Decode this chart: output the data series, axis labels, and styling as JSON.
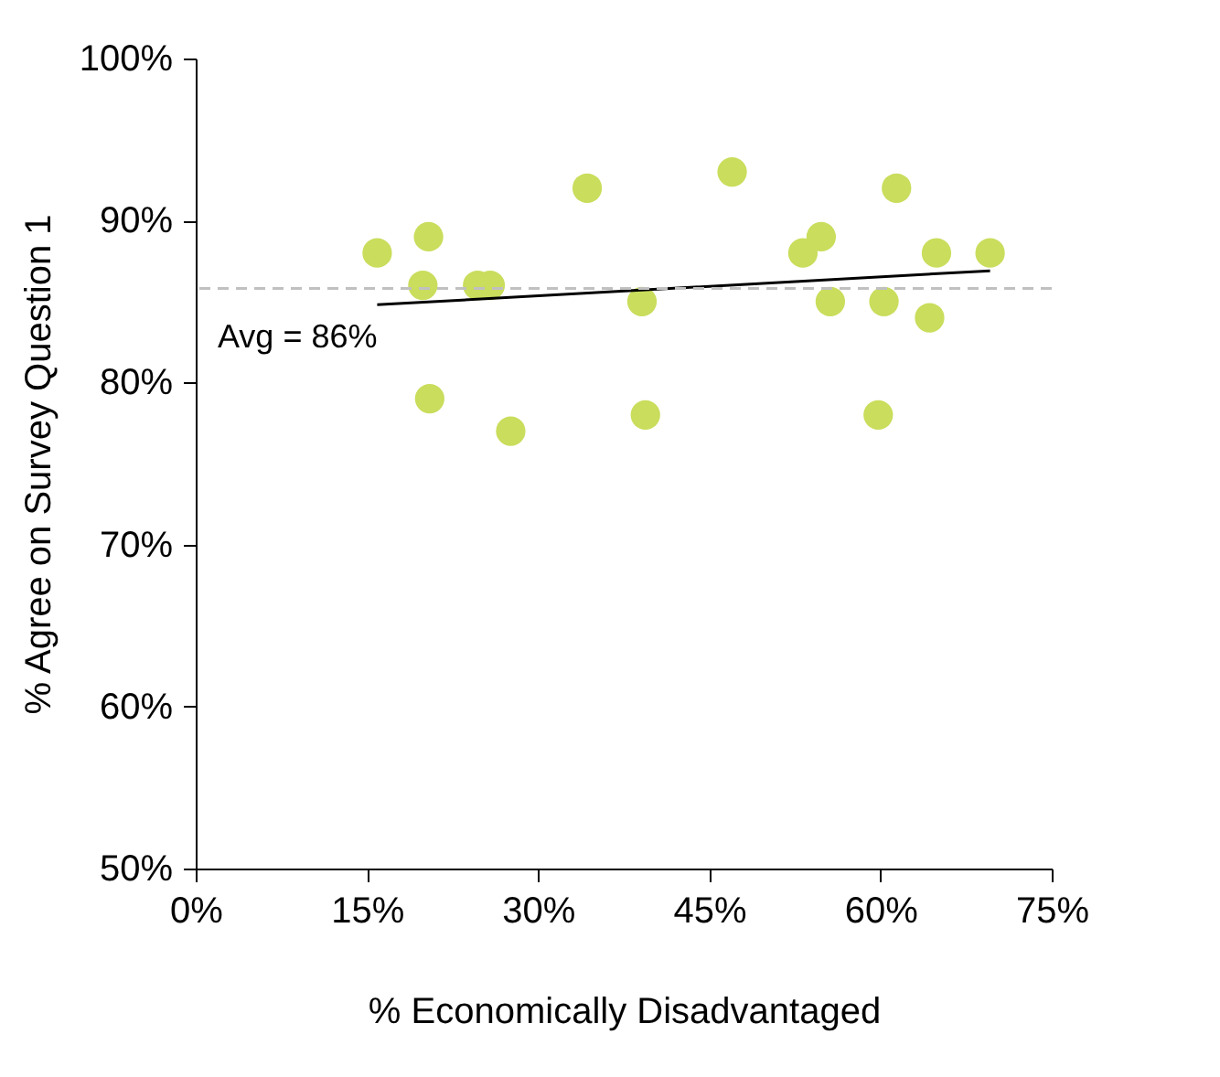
{
  "chart_data": {
    "type": "scatter",
    "xlabel": "% Economically Disadvantaged",
    "ylabel": "% Agree on Survey Question 1",
    "grid": false,
    "xlim": [
      0,
      75
    ],
    "xticks": [
      {
        "value": 0,
        "label": "0%"
      },
      {
        "value": 15,
        "label": "15%"
      },
      {
        "value": 30,
        "label": "30%"
      },
      {
        "value": 45,
        "label": "45%"
      },
      {
        "value": 60,
        "label": "60%"
      },
      {
        "value": 75,
        "label": "75%"
      }
    ],
    "ylim": [
      50,
      100
    ],
    "yticks": [
      {
        "value": 50,
        "label": "50%"
      },
      {
        "value": 60,
        "label": "60%"
      },
      {
        "value": 70,
        "label": "70%"
      },
      {
        "value": 80,
        "label": "80%"
      },
      {
        "value": 90,
        "label": "90%"
      },
      {
        "value": 100,
        "label": "100%"
      }
    ],
    "series": [
      {
        "marker": "circle",
        "color": "#cadd5c",
        "x": [
          15.9,
          20.4,
          19.9,
          20.5,
          24.7,
          25.8,
          27.6,
          34.3,
          39.1,
          39.4,
          47.0,
          53.2,
          54.8,
          55.6,
          59.8,
          60.3,
          61.4,
          64.3,
          64.9,
          69.6
        ],
        "values": [
          88,
          89,
          86,
          79,
          86,
          86,
          77,
          92,
          85,
          78,
          93,
          88,
          89,
          85,
          78,
          85,
          92,
          84,
          88,
          88
        ]
      },
      {
        "type": "line",
        "color": "#000000",
        "x": [
          15.9,
          69.6
        ],
        "values": [
          84.8,
          86.9
        ]
      }
    ],
    "ref_lines": [
      {
        "axis": "y",
        "value": 85.8,
        "label": "Avg = 86%",
        "color": "#c0c0c0",
        "line_style": "dashed"
      }
    ]
  }
}
